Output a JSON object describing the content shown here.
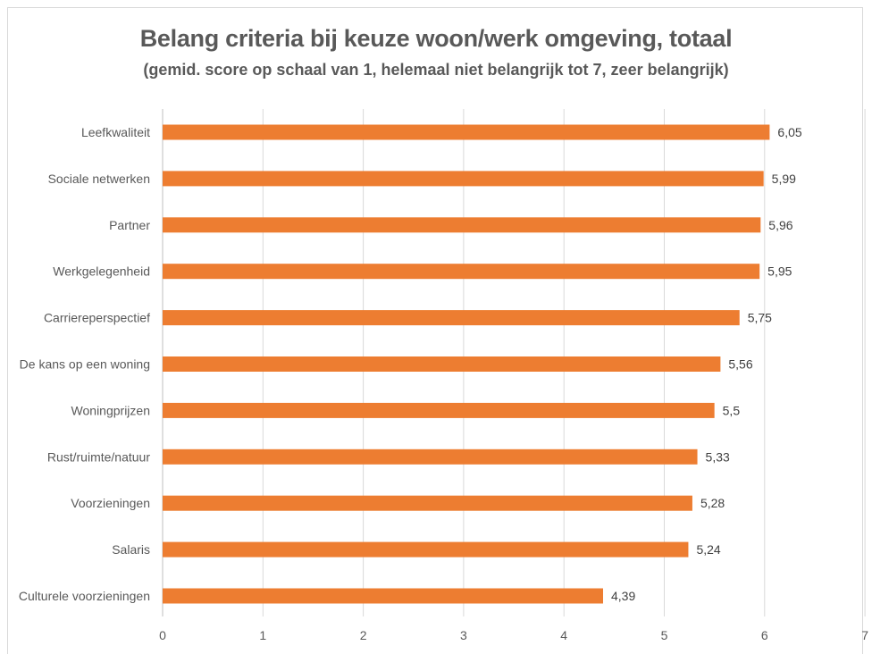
{
  "chart_data": {
    "type": "bar",
    "orientation": "horizontal",
    "title": "Belang criteria bij keuze woon/werk omgeving, totaal",
    "subtitle": "(gemid. score op schaal van 1, helemaal niet belangrijk tot 7, zeer belangrijk)",
    "categories": [
      "Leefkwaliteit",
      "Sociale netwerken",
      "Partner",
      "Werkgelegenheid",
      "Carriereperspectief",
      "De kans op een woning",
      "Woningprijzen",
      "Rust/ruimte/natuur",
      "Voorzieningen",
      "Salaris",
      "Culturele voorzieningen"
    ],
    "values": [
      6.05,
      5.99,
      5.96,
      5.95,
      5.75,
      5.56,
      5.5,
      5.33,
      5.28,
      5.24,
      4.39
    ],
    "data_labels": [
      "6,05",
      "5,99",
      "5,96",
      "5,95",
      "5,75",
      "5,56",
      "5,5",
      "5,33",
      "5,28",
      "5,24",
      "4,39"
    ],
    "xlim": [
      0,
      7
    ],
    "xticks": [
      "0",
      "1",
      "2",
      "3",
      "4",
      "5",
      "6",
      "7"
    ],
    "grid": "vertical",
    "legend": "none",
    "bar_color": "#ed7d31"
  }
}
